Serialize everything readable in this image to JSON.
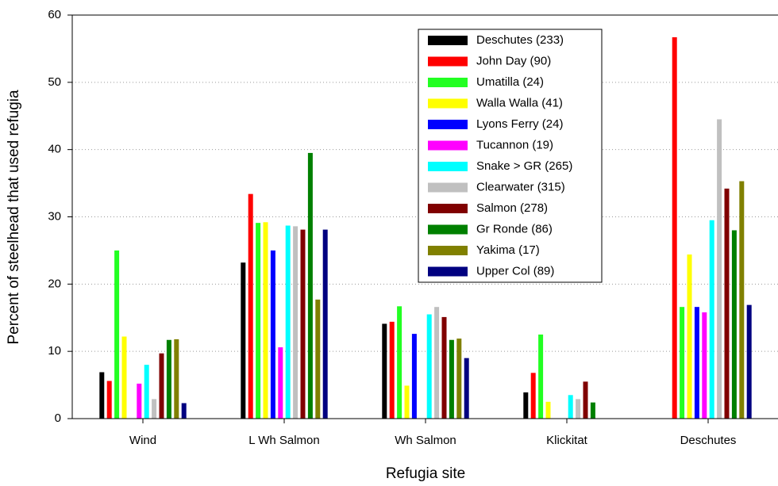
{
  "chart_data": {
    "type": "bar",
    "x_label": "Refugia site",
    "y_label": "Percent of steelhead that used refugia",
    "categories": [
      "Wind",
      "L Wh Salmon",
      "Wh Salmon",
      "Klickitat",
      "Deschutes"
    ],
    "ylim": [
      0,
      60
    ],
    "yticks": [
      0,
      10,
      20,
      30,
      40,
      50,
      60
    ],
    "grid": true,
    "legend": "upper right",
    "series": [
      {
        "name": "Deschutes (233)",
        "color": "#000000",
        "values": [
          6.9,
          23.2,
          14.1,
          3.9,
          0
        ]
      },
      {
        "name": "John Day (90)",
        "color": "#ff0000",
        "values": [
          5.6,
          33.4,
          14.4,
          6.8,
          56.7
        ]
      },
      {
        "name": "Umatilla (24)",
        "color": "#22ff22",
        "values": [
          25,
          29.1,
          16.7,
          12.5,
          16.6
        ]
      },
      {
        "name": "Walla Walla (41)",
        "color": "#ffff00",
        "values": [
          12.2,
          29.2,
          4.9,
          2.5,
          24.4
        ]
      },
      {
        "name": "Lyons Ferry (24)",
        "color": "#0000ff",
        "values": [
          0,
          25,
          12.6,
          0,
          16.6
        ]
      },
      {
        "name": "Tucannon (19)",
        "color": "#ff00ff",
        "values": [
          5.2,
          10.6,
          0,
          0,
          15.8
        ]
      },
      {
        "name": "Snake > GR (265)",
        "color": "#00ffff",
        "values": [
          8,
          28.7,
          15.5,
          3.5,
          29.5
        ]
      },
      {
        "name": "Clearwater (315)",
        "color": "#c0c0c0",
        "values": [
          2.9,
          28.6,
          16.6,
          2.9,
          44.5
        ]
      },
      {
        "name": "Salmon (278)",
        "color": "#800000",
        "values": [
          9.7,
          28.1,
          15.1,
          5.5,
          34.2
        ]
      },
      {
        "name": "Gr Ronde (86)",
        "color": "#008000",
        "values": [
          11.7,
          39.5,
          11.7,
          2.4,
          28
        ]
      },
      {
        "name": "Yakima (17)",
        "color": "#808000",
        "values": [
          11.8,
          17.7,
          11.9,
          0,
          35.3
        ]
      },
      {
        "name": "Upper Col (89)",
        "color": "#000080",
        "values": [
          2.3,
          28.1,
          9,
          0,
          16.9
        ]
      }
    ]
  }
}
